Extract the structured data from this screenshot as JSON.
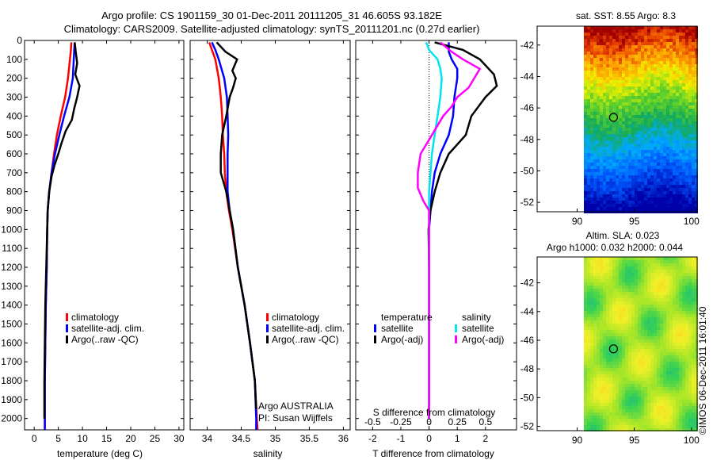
{
  "header": {
    "line1": "Argo profile: CS 1901159_30 01-Dec-2011 20111205_31 46.605S 93.182E",
    "line2": "Climatology: CARS2009. Satellite-adjusted climatology: synTS_20111201.nc (0.27d earlier)"
  },
  "colors": {
    "climatology": "#ff0000",
    "satellite": "#0000ff",
    "argo": "#000000",
    "satellite_salinity": "#00e5ee",
    "argo_salinity": "#ff00ff"
  },
  "chart_data": [
    {
      "type": "line",
      "xlabel": "temperature (deg C)",
      "xlim": [
        -2,
        31
      ],
      "ylim": [
        0,
        2060
      ],
      "xticks": [
        0,
        5,
        10,
        15,
        20,
        25,
        30
      ],
      "yticks": [
        0,
        100,
        200,
        300,
        400,
        500,
        600,
        700,
        800,
        900,
        1000,
        1100,
        1200,
        1300,
        1400,
        1500,
        1600,
        1700,
        1800,
        1900,
        2000
      ],
      "legend": [
        "climatology",
        "satellite-adj. clim.",
        "Argo(..raw -QC)"
      ],
      "series": [
        {
          "name": "climatology",
          "color": "#ff0000",
          "points": [
            [
              7.7,
              10
            ],
            [
              7.6,
              50
            ],
            [
              7.4,
              100
            ],
            [
              7.0,
              200
            ],
            [
              6.4,
              300
            ],
            [
              5.5,
              400
            ],
            [
              4.7,
              500
            ],
            [
              4.1,
              600
            ],
            [
              3.6,
              700
            ],
            [
              3.1,
              800
            ],
            [
              2.8,
              900
            ],
            [
              2.7,
              1000
            ],
            [
              2.6,
              1200
            ],
            [
              2.4,
              1400
            ],
            [
              2.3,
              1600
            ],
            [
              2.2,
              1800
            ],
            [
              2.2,
              2000
            ],
            [
              2.2,
              2060
            ]
          ]
        },
        {
          "name": "satellite-adj. clim.",
          "color": "#0000ff",
          "points": [
            [
              8.4,
              10
            ],
            [
              8.3,
              50
            ],
            [
              8.2,
              100
            ],
            [
              8.0,
              200
            ],
            [
              7.3,
              300
            ],
            [
              6.2,
              400
            ],
            [
              5.2,
              500
            ],
            [
              4.3,
              600
            ],
            [
              3.6,
              700
            ],
            [
              3.1,
              800
            ],
            [
              2.8,
              900
            ],
            [
              2.7,
              1000
            ],
            [
              2.6,
              1200
            ],
            [
              2.4,
              1400
            ],
            [
              2.3,
              1600
            ],
            [
              2.2,
              1800
            ],
            [
              2.2,
              2000
            ],
            [
              2.2,
              2060
            ]
          ]
        },
        {
          "name": "Argo(..raw -QC)",
          "color": "#000000",
          "points": [
            [
              8.4,
              10
            ],
            [
              8.6,
              60
            ],
            [
              8.9,
              120
            ],
            [
              8.5,
              180
            ],
            [
              9.4,
              240
            ],
            [
              8.9,
              300
            ],
            [
              8.3,
              360
            ],
            [
              7.8,
              420
            ],
            [
              6.5,
              480
            ],
            [
              5.7,
              540
            ],
            [
              5.0,
              600
            ],
            [
              4.2,
              660
            ],
            [
              3.6,
              720
            ],
            [
              3.1,
              800
            ],
            [
              2.8,
              900
            ],
            [
              2.7,
              1000
            ],
            [
              2.5,
              1200
            ],
            [
              2.3,
              1400
            ],
            [
              2.2,
              1600
            ],
            [
              2.1,
              1800
            ],
            [
              2.1,
              2000
            ]
          ]
        }
      ]
    },
    {
      "type": "line",
      "xlabel": "salinity",
      "xlim": [
        33.75,
        36.1
      ],
      "ylim": [
        0,
        2060
      ],
      "xticks": [
        34,
        34.5,
        35,
        35.5,
        36
      ],
      "legend": [
        "climatology",
        "satellite-adj. clim.",
        "Argo(..raw -QC)"
      ],
      "annotation": [
        "Argo AUSTRALIA",
        "PI: Susan Wijffels"
      ],
      "series": [
        {
          "name": "climatology",
          "color": "#ff0000",
          "points": [
            [
              34.03,
              10
            ],
            [
              34.07,
              50
            ],
            [
              34.12,
              100
            ],
            [
              34.17,
              200
            ],
            [
              34.2,
              300
            ],
            [
              34.22,
              400
            ],
            [
              34.23,
              500
            ],
            [
              34.25,
              600
            ],
            [
              34.26,
              700
            ],
            [
              34.28,
              800
            ],
            [
              34.32,
              900
            ],
            [
              34.37,
              1000
            ],
            [
              34.45,
              1200
            ],
            [
              34.55,
              1400
            ],
            [
              34.63,
              1600
            ],
            [
              34.7,
              1800
            ],
            [
              34.73,
              2000
            ],
            [
              34.74,
              2060
            ]
          ]
        },
        {
          "name": "satellite-adj. clim.",
          "color": "#0000ff",
          "points": [
            [
              34.07,
              10
            ],
            [
              34.12,
              50
            ],
            [
              34.17,
              100
            ],
            [
              34.25,
              200
            ],
            [
              34.29,
              300
            ],
            [
              34.3,
              400
            ],
            [
              34.31,
              500
            ],
            [
              34.3,
              600
            ],
            [
              34.3,
              700
            ],
            [
              34.3,
              800
            ],
            [
              34.33,
              900
            ],
            [
              34.38,
              1000
            ],
            [
              34.45,
              1200
            ],
            [
              34.55,
              1400
            ],
            [
              34.63,
              1600
            ],
            [
              34.7,
              1800
            ],
            [
              34.72,
              2000
            ],
            [
              34.72,
              2060
            ]
          ]
        },
        {
          "name": "Argo(..raw -QC)",
          "color": "#000000",
          "points": [
            [
              34.14,
              10
            ],
            [
              34.27,
              60
            ],
            [
              34.44,
              100
            ],
            [
              34.37,
              160
            ],
            [
              34.42,
              200
            ],
            [
              34.38,
              250
            ],
            [
              34.33,
              300
            ],
            [
              34.28,
              400
            ],
            [
              34.22,
              500
            ],
            [
              34.2,
              600
            ],
            [
              34.2,
              650
            ],
            [
              34.2,
              700
            ],
            [
              34.28,
              800
            ],
            [
              34.33,
              900
            ],
            [
              34.38,
              1000
            ],
            [
              34.45,
              1200
            ],
            [
              34.55,
              1400
            ],
            [
              34.63,
              1600
            ],
            [
              34.7,
              1800
            ],
            [
              34.72,
              1950
            ]
          ]
        }
      ]
    },
    {
      "type": "line",
      "xlabel": "T difference from climatology",
      "xlabel_top": "S difference from climatology",
      "xlim": [
        -2.6,
        3.1
      ],
      "ylim": [
        0,
        2060
      ],
      "xticks": [
        -2,
        -1,
        0,
        1,
        2
      ],
      "xticklabels_top": [
        "-0.5",
        "-0.25",
        "0",
        "0.25",
        "0.5"
      ],
      "legend_titles": [
        "temperature",
        "salinity"
      ],
      "legend": [
        "satellite",
        "Argo(-adj)",
        "satellite",
        "Argo(-adj)"
      ],
      "series": [
        {
          "name": "satellite",
          "group": "temperature",
          "color": "#0000ff",
          "points": [
            [
              0.7,
              10
            ],
            [
              0.7,
              60
            ],
            [
              0.8,
              100
            ],
            [
              1.0,
              150
            ],
            [
              1.0,
              200
            ],
            [
              0.9,
              300
            ],
            [
              0.85,
              400
            ],
            [
              0.7,
              500
            ],
            [
              0.4,
              600
            ],
            [
              0.2,
              700
            ],
            [
              0.1,
              800
            ],
            [
              0.05,
              900
            ],
            [
              0,
              1000
            ],
            [
              0,
              1200
            ],
            [
              0,
              1400
            ],
            [
              0,
              1600
            ],
            [
              0,
              1800
            ],
            [
              0,
              2000
            ]
          ]
        },
        {
          "name": "Argo(-adj)",
          "group": "temperature",
          "color": "#000000",
          "points": [
            [
              0.2,
              10
            ],
            [
              1.2,
              50
            ],
            [
              1.8,
              100
            ],
            [
              2.3,
              180
            ],
            [
              2.4,
              240
            ],
            [
              2.0,
              300
            ],
            [
              1.5,
              400
            ],
            [
              1.3,
              500
            ],
            [
              0.7,
              600
            ],
            [
              0.4,
              700
            ],
            [
              0.2,
              800
            ],
            [
              0.05,
              900
            ],
            [
              -0.02,
              1000
            ],
            [
              0,
              1200
            ],
            [
              0,
              1400
            ],
            [
              0,
              1600
            ],
            [
              0,
              1800
            ],
            [
              0,
              2000
            ]
          ]
        },
        {
          "name": "satellite",
          "group": "salinity",
          "color": "#00e5ee",
          "points": [
            [
              -0.1,
              10
            ],
            [
              0,
              50
            ],
            [
              0.3,
              100
            ],
            [
              0.4,
              150
            ],
            [
              0.45,
              200
            ],
            [
              0.4,
              300
            ],
            [
              0.3,
              400
            ],
            [
              0.2,
              500
            ],
            [
              0.1,
              600
            ],
            [
              0.05,
              700
            ],
            [
              0.0,
              800
            ],
            [
              0.0,
              900
            ],
            [
              0,
              1000
            ],
            [
              0,
              1200
            ],
            [
              0,
              1400
            ],
            [
              0,
              1600
            ],
            [
              0,
              1800
            ],
            [
              0,
              2000
            ]
          ]
        },
        {
          "name": "Argo(-adj)",
          "group": "salinity",
          "color": "#ff00ff",
          "points": [
            [
              0.4,
              10
            ],
            [
              0.8,
              60
            ],
            [
              1.2,
              100
            ],
            [
              1.8,
              150
            ],
            [
              1.4,
              250
            ],
            [
              1.0,
              300
            ],
            [
              0.8,
              350
            ],
            [
              0.5,
              400
            ],
            [
              0.1,
              500
            ],
            [
              -0.3,
              600
            ],
            [
              -0.4,
              700
            ],
            [
              -0.4,
              780
            ],
            [
              -0.2,
              850
            ],
            [
              0.0,
              900
            ],
            [
              0,
              1000
            ],
            [
              0,
              1200
            ],
            [
              0,
              1400
            ],
            [
              0,
              1600
            ],
            [
              0,
              1800
            ],
            [
              0,
              2000
            ]
          ]
        }
      ]
    },
    {
      "type": "heatmap",
      "title": "sat. SST: 8.55 Argo: 8.3",
      "xlim": [
        86.5,
        100.5
      ],
      "ylim": [
        -52.6,
        -40.8
      ],
      "xticks": [
        90,
        95,
        100
      ],
      "yticks": [
        -42,
        -44,
        -46,
        -48,
        -50,
        -52
      ],
      "data_xlim": [
        86.5,
        100.5
      ],
      "marker": [
        93.18,
        -46.6
      ]
    },
    {
      "type": "heatmap",
      "title": "Altim. SLA: 0.023",
      "subtitle": "Argo h1000: 0.032 h2000: 0.044",
      "xlim": [
        86.5,
        100.5
      ],
      "ylim": [
        -52.3,
        -40.2
      ],
      "xticks": [
        90,
        95,
        100
      ],
      "yticks": [
        -42,
        -44,
        -46,
        -48,
        -50,
        -52
      ],
      "marker": [
        93.18,
        -46.6
      ]
    }
  ],
  "side_label": "©IMOS 06-Dec-2011 16:01:40"
}
